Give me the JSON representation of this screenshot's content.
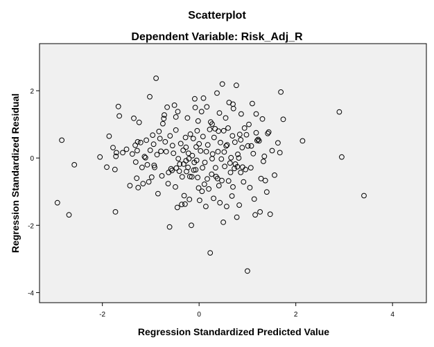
{
  "chart_data": {
    "type": "scatter",
    "title": "Scatterplot",
    "subtitle": "Dependent Variable: Risk_Adj_R",
    "xlabel": "Regression Standardized Predicted Value",
    "ylabel": "Regression Standardized Residual",
    "xlim": [
      -3.3,
      4.7
    ],
    "ylim": [
      -4.3,
      3.4
    ],
    "xticks": [
      -2,
      0,
      2,
      4
    ],
    "yticks": [
      -4,
      -2,
      0,
      2
    ],
    "xtick_labels": [
      "-2",
      "0",
      "2",
      "4"
    ],
    "ytick_labels": [
      "-4",
      "-2",
      "0",
      "2"
    ],
    "grid": false,
    "legend": "none",
    "colors": {
      "plot_background": "#f0f0f0",
      "marker": "#000000",
      "frame": "#000000"
    },
    "points": [
      [
        -2.93,
        -1.33
      ],
      [
        -2.69,
        -1.69
      ],
      [
        -2.58,
        -0.2
      ],
      [
        -2.84,
        0.53
      ],
      [
        -2.05,
        0.03
      ],
      [
        -1.91,
        -0.27
      ],
      [
        -1.86,
        0.65
      ],
      [
        -1.78,
        0.31
      ],
      [
        -1.74,
        -0.34
      ],
      [
        -1.73,
        -1.6
      ],
      [
        -1.71,
        0.16
      ],
      [
        -1.72,
        0.05
      ],
      [
        -1.67,
        1.53
      ],
      [
        -1.65,
        1.25
      ],
      [
        -1.58,
        0.16
      ],
      [
        -1.5,
        0.26
      ],
      [
        -1.43,
        -0.82
      ],
      [
        -1.38,
        0.12
      ],
      [
        -1.35,
        1.18
      ],
      [
        -1.32,
        0.38
      ],
      [
        -1.31,
        -0.12
      ],
      [
        -1.29,
        -0.6
      ],
      [
        -1.28,
        0.22
      ],
      [
        -1.27,
        0.48
      ],
      [
        -1.26,
        -0.88
      ],
      [
        -1.24,
        1.06
      ],
      [
        -1.21,
        0.46
      ],
      [
        -1.18,
        -0.28
      ],
      [
        -1.16,
        -0.76
      ],
      [
        -1.13,
        0.04
      ],
      [
        -1.11,
        0.01
      ],
      [
        -1.09,
        0.53
      ],
      [
        -1.07,
        -0.2
      ],
      [
        -1.04,
        -0.71
      ],
      [
        -1.02,
        1.82
      ],
      [
        -1.01,
        0.23
      ],
      [
        -0.98,
        -0.57
      ],
      [
        -0.96,
        0.68
      ],
      [
        -0.94,
        0.41
      ],
      [
        -0.92,
        -0.28
      ],
      [
        -0.89,
        2.37
      ],
      [
        -0.87,
        0.1
      ],
      [
        -0.85,
        -1.06
      ],
      [
        -0.83,
        0.79
      ],
      [
        -0.81,
        0.58
      ],
      [
        -0.79,
        0.2
      ],
      [
        -0.77,
        -0.53
      ],
      [
        -0.75,
        1.02
      ],
      [
        -0.73,
        1.17
      ],
      [
        -0.72,
        1.28
      ],
      [
        -0.7,
        0.48
      ],
      [
        -0.68,
        0.19
      ],
      [
        -0.66,
        1.51
      ],
      [
        -0.64,
        -0.76
      ],
      [
        -0.63,
        -0.43
      ],
      [
        -0.61,
        -2.05
      ],
      [
        -0.6,
        0.66
      ],
      [
        -0.58,
        -0.32
      ],
      [
        -0.56,
        -0.37
      ],
      [
        -0.55,
        0.37
      ],
      [
        -0.53,
        0.14
      ],
      [
        -0.51,
        1.57
      ],
      [
        -0.49,
        -0.86
      ],
      [
        -0.48,
        0.83
      ],
      [
        -0.47,
        -0.3
      ],
      [
        -0.45,
        -1.47
      ],
      [
        -0.44,
        1.38
      ],
      [
        -0.43,
        -0.02
      ],
      [
        -0.41,
        -0.39
      ],
      [
        -0.4,
        -0.18
      ],
      [
        -0.38,
        0.43
      ],
      [
        -0.36,
        -1.38
      ],
      [
        -0.35,
        -0.56
      ],
      [
        -0.33,
        0.23
      ],
      [
        -0.32,
        -0.18
      ],
      [
        -0.31,
        -1.12
      ],
      [
        -0.29,
        -1.37
      ],
      [
        -0.28,
        0.61
      ],
      [
        -0.27,
        -0.08
      ],
      [
        -0.26,
        -0.4
      ],
      [
        -0.24,
        1.19
      ],
      [
        -0.23,
        -0.28
      ],
      [
        -0.22,
        0.14
      ],
      [
        -0.2,
        -1.23
      ],
      [
        -0.19,
        -0.55
      ],
      [
        -0.18,
        0.71
      ],
      [
        -0.16,
        -2.0
      ],
      [
        -0.15,
        -0.56
      ],
      [
        -0.14,
        0.07
      ],
      [
        -0.12,
        0.58
      ],
      [
        -0.11,
        -0.36
      ],
      [
        -0.1,
        -0.13
      ],
      [
        -0.09,
        1.76
      ],
      [
        -0.08,
        1.5
      ],
      [
        -0.07,
        -0.35
      ],
      [
        -0.06,
        0.33
      ],
      [
        -0.05,
        -0.07
      ],
      [
        -0.04,
        0.81
      ],
      [
        -0.03,
        -0.58
      ],
      [
        -0.02,
        1.1
      ],
      [
        -0.01,
        -0.89
      ],
      [
        0.0,
        0.42
      ],
      [
        0.01,
        -1.26
      ],
      [
        0.03,
        0.21
      ],
      [
        0.05,
        1.38
      ],
      [
        0.06,
        -0.99
      ],
      [
        0.07,
        -0.29
      ],
      [
        0.08,
        0.64
      ],
      [
        0.09,
        1.78
      ],
      [
        0.11,
        -0.78
      ],
      [
        0.12,
        -0.13
      ],
      [
        0.14,
        -1.44
      ],
      [
        0.15,
        0.19
      ],
      [
        0.16,
        1.52
      ],
      [
        0.17,
        -0.62
      ],
      [
        0.18,
        0.39
      ],
      [
        0.2,
        -0.92
      ],
      [
        0.22,
        0.85
      ],
      [
        0.23,
        -2.82
      ],
      [
        0.24,
        1.07
      ],
      [
        0.26,
        -0.48
      ],
      [
        0.27,
        -0.02
      ],
      [
        0.28,
        0.12
      ],
      [
        0.3,
        -1.2
      ],
      [
        0.31,
        0.61
      ],
      [
        0.33,
        0.87
      ],
      [
        0.34,
        -0.29
      ],
      [
        0.35,
        -0.55
      ],
      [
        0.37,
        1.93
      ],
      [
        0.38,
        -0.61
      ],
      [
        0.39,
        0.19
      ],
      [
        0.4,
        0.8
      ],
      [
        0.42,
        1.34
      ],
      [
        0.43,
        -1.33
      ],
      [
        0.44,
        0.46
      ],
      [
        0.46,
        -0.03
      ],
      [
        0.47,
        -0.67
      ],
      [
        0.48,
        2.2
      ],
      [
        0.5,
        -1.91
      ],
      [
        0.51,
        0.81
      ],
      [
        0.52,
        0.18
      ],
      [
        0.53,
        -0.25
      ],
      [
        0.55,
        1.19
      ],
      [
        0.56,
        0.36
      ],
      [
        0.57,
        -1.44
      ],
      [
        0.58,
        0.39
      ],
      [
        0.6,
        0.89
      ],
      [
        0.61,
        -0.68
      ],
      [
        0.62,
        1.65
      ],
      [
        0.64,
        -0.15
      ],
      [
        0.65,
        -0.43
      ],
      [
        0.66,
        0.01
      ],
      [
        0.68,
        -1.13
      ],
      [
        0.69,
        0.66
      ],
      [
        0.7,
        -0.86
      ],
      [
        0.71,
        1.47
      ],
      [
        0.73,
        -0.31
      ],
      [
        0.74,
        0.47
      ],
      [
        0.75,
        -0.18
      ],
      [
        0.77,
        2.16
      ],
      [
        0.78,
        -1.76
      ],
      [
        0.79,
        -0.26
      ],
      [
        0.8,
        0.11
      ],
      [
        0.82,
        0.0
      ],
      [
        0.83,
        -1.4
      ],
      [
        0.84,
        0.7
      ],
      [
        0.86,
        -0.43
      ],
      [
        0.87,
        1.31
      ],
      [
        0.89,
        0.31
      ],
      [
        0.9,
        -0.27
      ],
      [
        0.92,
        -0.71
      ],
      [
        0.94,
        0.89
      ],
      [
        0.96,
        -0.34
      ],
      [
        0.98,
        0.69
      ],
      [
        1.0,
        -3.36
      ],
      [
        1.01,
        0.36
      ],
      [
        1.03,
        1.0
      ],
      [
        1.05,
        -0.88
      ],
      [
        1.07,
        -0.29
      ],
      [
        1.1,
        1.62
      ],
      [
        1.12,
        0.13
      ],
      [
        1.14,
        -1.22
      ],
      [
        1.16,
        -1.69
      ],
      [
        1.18,
        1.31
      ],
      [
        1.2,
        0.52
      ],
      [
        1.22,
        0.55
      ],
      [
        1.24,
        0.51
      ],
      [
        1.26,
        -1.6
      ],
      [
        1.28,
        -0.61
      ],
      [
        1.31,
        1.16
      ],
      [
        1.33,
        -0.1
      ],
      [
        1.35,
        0.05
      ],
      [
        1.37,
        -0.67
      ],
      [
        1.4,
        -1.01
      ],
      [
        1.42,
        0.73
      ],
      [
        1.44,
        0.77
      ],
      [
        1.47,
        -1.67
      ],
      [
        1.51,
        0.22
      ],
      [
        1.56,
        -0.51
      ],
      [
        1.63,
        0.45
      ],
      [
        1.67,
        0.16
      ],
      [
        1.69,
        1.96
      ],
      [
        1.74,
        1.15
      ],
      [
        2.14,
        0.51
      ],
      [
        2.9,
        1.37
      ],
      [
        2.95,
        0.03
      ],
      [
        3.41,
        -1.12
      ],
      [
        1.08,
        0.36
      ],
      [
        -0.48,
        1.22
      ],
      [
        0.41,
        -0.82
      ],
      [
        -0.93,
        -0.22
      ],
      [
        0.27,
        1.01
      ],
      [
        -0.21,
        -0.02
      ],
      [
        0.86,
        0.54
      ],
      [
        0.7,
        1.6
      ],
      [
        -0.27,
        0.32
      ],
      [
        1.18,
        0.75
      ]
    ]
  }
}
